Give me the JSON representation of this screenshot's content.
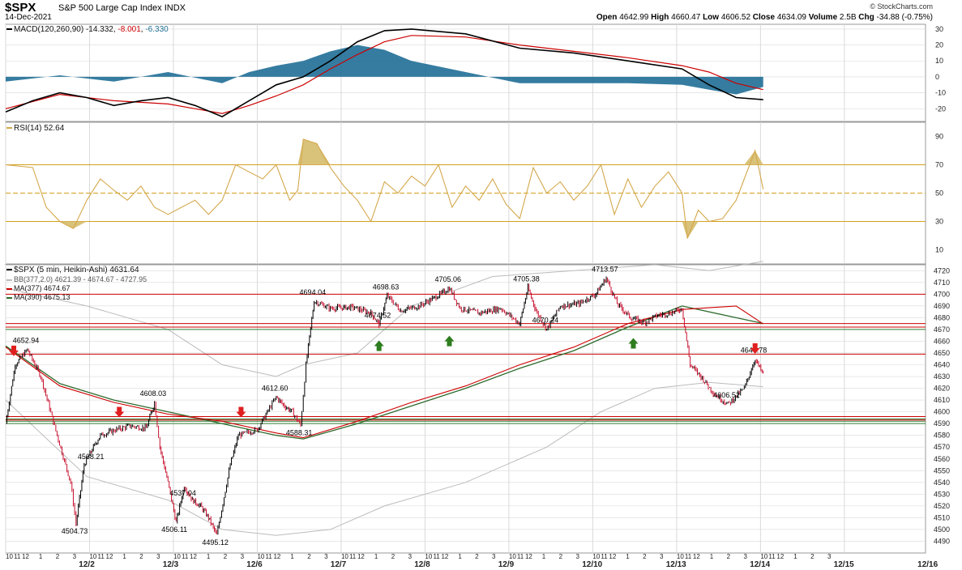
{
  "header": {
    "symbol": "$SPX",
    "name": "S&P 500 Large Cap Index",
    "exchange": "INDX",
    "date": "14-Dec-2021",
    "open_label": "Open",
    "open": "4642.99",
    "high_label": "High",
    "high": "4660.47",
    "low_label": "Low",
    "low": "4606.52",
    "close_label": "Close",
    "close": "4634.09",
    "volume_label": "Volume",
    "volume": "2.5B",
    "chg_label": "Chg",
    "chg": "-34.88 (-0.75%)",
    "credit": "© StockCharts.com"
  },
  "legends": {
    "macd": {
      "label": "MACD(120,260,90)",
      "v1": "-14.332",
      "v2": "-8.001",
      "v3": "-6.330"
    },
    "rsi": {
      "label": "RSI(14)",
      "value": "52.64"
    },
    "price": {
      "label": "$SPX (5 min, Heikin-Ashi)",
      "value": "4631.64"
    },
    "bb": {
      "label": "BB(377,2.0)",
      "value": "4621.39 - 4674.67 - 4727.95"
    },
    "ma377": {
      "label": "MA(377)",
      "value": "4674.67"
    },
    "ma390": {
      "label": "MA(390)",
      "value": "4675.13"
    }
  },
  "colors": {
    "grid": "#d9d9d9",
    "macd_line": "#000000",
    "signal_line": "#cc0000",
    "histogram": "#1f6e96",
    "rsi_line": "#d4a84b",
    "rsi_fill": "#d9c27a",
    "rsi_levels": "#d4a020",
    "candle_up": "#000000",
    "candle_down": "#c8102e",
    "resistance": "#cc0000",
    "support": "#2e7d32",
    "ma377": "#cc0000",
    "ma390": "#2e6b2e",
    "bb": "#bbbbbb",
    "arrow_down": "#e02020",
    "arrow_up": "#2e7d1e"
  },
  "chart_data": {
    "type": "candlestick",
    "series_note": "5-minute Heikin-Ashi bars, S&P 500",
    "x_axis": {
      "day_labels": [
        "12/2",
        "12/3",
        "12/6",
        "12/7",
        "12/8",
        "12/9",
        "12/10",
        "12/13",
        "12/14",
        "12/15",
        "12/16"
      ],
      "hour_labels": [
        [
          "10",
          "11"
        ],
        [
          "12",
          "1",
          "2",
          "3"
        ],
        [
          "10",
          "11"
        ],
        [
          "12",
          "1",
          "2",
          "3"
        ],
        [
          "10",
          "11"
        ],
        [
          "12",
          "1",
          "2",
          "3"
        ],
        [
          "10",
          "11"
        ],
        [
          "12",
          "1",
          "2",
          "3"
        ],
        [
          "10",
          "11"
        ],
        [
          "12",
          "1",
          "2",
          "3"
        ],
        [
          "10",
          "11"
        ],
        [
          "12",
          "1",
          "2",
          "3"
        ],
        [
          "10",
          "11"
        ],
        [
          "12",
          "1",
          "2",
          "3"
        ],
        [
          "10",
          "11"
        ],
        [
          "12",
          "1",
          "2",
          "3"
        ],
        [
          "10",
          "11"
        ],
        [
          "12",
          "1",
          "2",
          "3"
        ],
        [
          "10",
          "11"
        ],
        [
          "12",
          "1",
          "2",
          "3"
        ]
      ]
    },
    "price": {
      "ylim": [
        4480,
        4725
      ],
      "ticks": [
        4490,
        4500,
        4510,
        4520,
        4530,
        4540,
        4550,
        4560,
        4570,
        4580,
        4590,
        4600,
        4610,
        4620,
        4630,
        4640,
        4650,
        4660,
        4670,
        4680,
        4690,
        4700,
        4710,
        4720
      ],
      "path": [
        [
          0,
          4590
        ],
        [
          0.35,
          4640
        ],
        [
          0.8,
          4652.94
        ],
        [
          1.3,
          4630
        ],
        [
          1.9,
          4580
        ],
        [
          2.4,
          4540
        ],
        [
          2.6,
          4504.73
        ],
        [
          2.9,
          4555
        ],
        [
          3.2,
          4568.21
        ],
        [
          3.5,
          4580
        ],
        [
          4.1,
          4585
        ],
        [
          4.6,
          4588
        ],
        [
          5.2,
          4586
        ],
        [
          5.5,
          4608.03
        ],
        [
          5.7,
          4570
        ],
        [
          6.0,
          4540
        ],
        [
          6.3,
          4506.11
        ],
        [
          6.6,
          4537.04
        ],
        [
          6.9,
          4525
        ],
        [
          7.2,
          4520
        ],
        [
          7.5,
          4510
        ],
        [
          7.8,
          4495.12
        ],
        [
          8.3,
          4555
        ],
        [
          8.6,
          4580
        ],
        [
          9.3,
          4585
        ],
        [
          9.8,
          4605
        ],
        [
          10.0,
          4612.6
        ],
        [
          10.3,
          4605
        ],
        [
          10.6,
          4600
        ],
        [
          10.9,
          4588.31
        ],
        [
          11.1,
          4640
        ],
        [
          11.4,
          4694.04
        ],
        [
          12.0,
          4688
        ],
        [
          12.8,
          4689
        ],
        [
          13.5,
          4684
        ],
        [
          13.8,
          4674.52
        ],
        [
          14.1,
          4698.63
        ],
        [
          14.6,
          4686
        ],
        [
          15.3,
          4690
        ],
        [
          16.0,
          4699
        ],
        [
          16.4,
          4705.06
        ],
        [
          16.8,
          4688
        ],
        [
          17.5,
          4684
        ],
        [
          18.3,
          4688
        ],
        [
          19.0,
          4675
        ],
        [
          19.3,
          4705.38
        ],
        [
          19.6,
          4686
        ],
        [
          20.0,
          4670.24
        ],
        [
          20.5,
          4690
        ],
        [
          21.2,
          4692
        ],
        [
          21.8,
          4700
        ],
        [
          22.2,
          4713.57
        ],
        [
          22.6,
          4692
        ],
        [
          23.1,
          4680
        ],
        [
          23.6,
          4676
        ],
        [
          24.1,
          4682
        ],
        [
          24.6,
          4684
        ],
        [
          25.0,
          4688
        ],
        [
          25.3,
          4640
        ],
        [
          25.7,
          4630
        ],
        [
          26.2,
          4615
        ],
        [
          26.7,
          4606.52
        ],
        [
          27.3,
          4620
        ],
        [
          27.7,
          4644.78
        ],
        [
          28.0,
          4631.64
        ]
      ],
      "annotations": [
        {
          "label": "4652.94",
          "x": 0.8,
          "y": 4652.94
        },
        {
          "label": "4504.73",
          "x": 2.6,
          "y": 4504.73
        },
        {
          "label": "4568.21",
          "x": 3.2,
          "y": 4568.21
        },
        {
          "label": "4608.03",
          "x": 5.5,
          "y": 4608.03
        },
        {
          "label": "4506.11",
          "x": 6.3,
          "y": 4506.11
        },
        {
          "label": "4537.04",
          "x": 6.6,
          "y": 4537.04
        },
        {
          "label": "4495.12",
          "x": 7.8,
          "y": 4495.12
        },
        {
          "label": "4612.60",
          "x": 10.0,
          "y": 4612.6
        },
        {
          "label": "4588.31",
          "x": 10.9,
          "y": 4588.31
        },
        {
          "label": "4694.04",
          "x": 11.4,
          "y": 4694.04
        },
        {
          "label": "4674.52",
          "x": 13.8,
          "y": 4674.52
        },
        {
          "label": "4698.63",
          "x": 14.1,
          "y": 4698.63
        },
        {
          "label": "4705.06",
          "x": 16.4,
          "y": 4705.06
        },
        {
          "label": "4705.38",
          "x": 19.3,
          "y": 4705.38
        },
        {
          "label": "4670.24",
          "x": 20.0,
          "y": 4670.24
        },
        {
          "label": "4713.57",
          "x": 22.2,
          "y": 4713.57
        },
        {
          "label": "4606.52",
          "x": 26.7,
          "y": 4606.52
        },
        {
          "label": "4644.78",
          "x": 27.7,
          "y": 4644.78
        }
      ],
      "resistance_lines": [
        4700,
        4675,
        4672,
        4649,
        4596,
        4593
      ],
      "support_lines": [
        4670,
        4594,
        4592,
        4590
      ],
      "ma377": [
        [
          0,
          4655
        ],
        [
          2,
          4622
        ],
        [
          4,
          4608
        ],
        [
          6,
          4598
        ],
        [
          8,
          4592
        ],
        [
          10,
          4582
        ],
        [
          11,
          4578
        ],
        [
          13,
          4592
        ],
        [
          15,
          4608
        ],
        [
          17,
          4622
        ],
        [
          19,
          4640
        ],
        [
          21,
          4655
        ],
        [
          23,
          4675
        ],
        [
          25,
          4687
        ],
        [
          27,
          4690
        ],
        [
          28,
          4674.67
        ]
      ],
      "ma390": [
        [
          0,
          4656
        ],
        [
          2,
          4624
        ],
        [
          4,
          4610
        ],
        [
          6,
          4600
        ],
        [
          8,
          4590
        ],
        [
          10,
          4580
        ],
        [
          11,
          4577
        ],
        [
          13,
          4590
        ],
        [
          15,
          4605
        ],
        [
          17,
          4620
        ],
        [
          19,
          4637
        ],
        [
          21,
          4652
        ],
        [
          23,
          4672
        ],
        [
          25,
          4690
        ],
        [
          27,
          4680
        ],
        [
          28,
          4675.13
        ]
      ],
      "bb_upper": [
        [
          0,
          4705
        ],
        [
          3,
          4690
        ],
        [
          6,
          4670
        ],
        [
          8,
          4640
        ],
        [
          10,
          4630
        ],
        [
          11,
          4640
        ],
        [
          13,
          4650
        ],
        [
          15,
          4690
        ],
        [
          18,
          4715
        ],
        [
          21,
          4720
        ],
        [
          24,
          4725
        ],
        [
          26,
          4720
        ],
        [
          28,
          4727.95
        ]
      ],
      "bb_lower": [
        [
          0,
          4610
        ],
        [
          3,
          4545
        ],
        [
          6,
          4525
        ],
        [
          8,
          4500
        ],
        [
          10,
          4495
        ],
        [
          12,
          4500
        ],
        [
          14,
          4520
        ],
        [
          17,
          4540
        ],
        [
          20,
          4570
        ],
        [
          22,
          4600
        ],
        [
          24,
          4620
        ],
        [
          26,
          4625
        ],
        [
          28,
          4621.39
        ]
      ],
      "arrows_down": [
        [
          0.3,
          4648
        ],
        [
          4.2,
          4596
        ],
        [
          8.7,
          4596
        ],
        [
          27.7,
          4650
        ]
      ],
      "arrows_up": [
        [
          13.8,
          4660
        ],
        [
          16.4,
          4664
        ],
        [
          23.2,
          4662
        ]
      ]
    },
    "macd": {
      "ylim": [
        -28,
        33
      ],
      "ticks": [
        30,
        20,
        10,
        0,
        -10,
        -20
      ],
      "macd_line": [
        [
          0,
          -22
        ],
        [
          1,
          -15
        ],
        [
          2,
          -10
        ],
        [
          3,
          -13
        ],
        [
          4,
          -18
        ],
        [
          5,
          -15
        ],
        [
          6,
          -13
        ],
        [
          7,
          -18
        ],
        [
          8,
          -25
        ],
        [
          9,
          -15
        ],
        [
          10,
          -5
        ],
        [
          11,
          0
        ],
        [
          12,
          10
        ],
        [
          13,
          22
        ],
        [
          14,
          29
        ],
        [
          15,
          30
        ],
        [
          17,
          27
        ],
        [
          19,
          18
        ],
        [
          21,
          15
        ],
        [
          23,
          10
        ],
        [
          25,
          5
        ],
        [
          26,
          -5
        ],
        [
          27,
          -13
        ],
        [
          28,
          -14.332
        ]
      ],
      "signal_line": [
        [
          0,
          -20
        ],
        [
          2,
          -11
        ],
        [
          4,
          -15
        ],
        [
          6,
          -17
        ],
        [
          8,
          -23
        ],
        [
          9,
          -18
        ],
        [
          10,
          -12
        ],
        [
          11,
          -5
        ],
        [
          12,
          5
        ],
        [
          13,
          14
        ],
        [
          14,
          22
        ],
        [
          15,
          26
        ],
        [
          17,
          25
        ],
        [
          19,
          20
        ],
        [
          21,
          16
        ],
        [
          23,
          12
        ],
        [
          25,
          7
        ],
        [
          26,
          3
        ],
        [
          27,
          -4
        ],
        [
          28,
          -8.001
        ]
      ],
      "histogram": [
        [
          0,
          -3
        ],
        [
          2,
          1
        ],
        [
          4,
          -3
        ],
        [
          6,
          3
        ],
        [
          8,
          -4
        ],
        [
          9,
          3
        ],
        [
          10,
          7
        ],
        [
          11,
          10
        ],
        [
          12,
          16
        ],
        [
          13,
          20
        ],
        [
          14,
          17
        ],
        [
          15,
          10
        ],
        [
          17,
          3
        ],
        [
          19,
          -4
        ],
        [
          21,
          -4
        ],
        [
          23,
          -4
        ],
        [
          25,
          -5
        ],
        [
          26,
          -8
        ],
        [
          27,
          -11
        ],
        [
          28,
          -6.33
        ]
      ]
    },
    "rsi": {
      "ylim": [
        0,
        100
      ],
      "ticks": [
        90,
        70,
        50,
        30,
        10
      ],
      "levels": [
        70,
        50,
        30
      ],
      "path": [
        [
          0,
          70
        ],
        [
          1,
          68
        ],
        [
          1.5,
          40
        ],
        [
          2,
          30
        ],
        [
          2.5,
          25
        ],
        [
          3,
          45
        ],
        [
          3.5,
          60
        ],
        [
          4,
          52
        ],
        [
          4.5,
          45
        ],
        [
          5,
          55
        ],
        [
          5.5,
          40
        ],
        [
          6,
          35
        ],
        [
          6.5,
          40
        ],
        [
          7,
          45
        ],
        [
          7.5,
          35
        ],
        [
          8,
          45
        ],
        [
          8.5,
          70
        ],
        [
          9,
          65
        ],
        [
          9.5,
          60
        ],
        [
          10,
          70
        ],
        [
          10.5,
          45
        ],
        [
          10.8,
          52
        ],
        [
          11.0,
          88
        ],
        [
          11.5,
          85
        ],
        [
          12,
          68
        ],
        [
          12.5,
          55
        ],
        [
          13,
          45
        ],
        [
          13.5,
          30
        ],
        [
          14,
          58
        ],
        [
          14.5,
          50
        ],
        [
          15,
          62
        ],
        [
          15.5,
          55
        ],
        [
          16,
          70
        ],
        [
          16.5,
          40
        ],
        [
          17,
          55
        ],
        [
          17.5,
          45
        ],
        [
          18,
          60
        ],
        [
          18.5,
          42
        ],
        [
          19,
          32
        ],
        [
          19.5,
          68
        ],
        [
          20,
          50
        ],
        [
          20.5,
          58
        ],
        [
          21,
          45
        ],
        [
          21.5,
          55
        ],
        [
          22,
          70
        ],
        [
          22.5,
          35
        ],
        [
          23,
          60
        ],
        [
          23.5,
          40
        ],
        [
          24,
          55
        ],
        [
          24.5,
          65
        ],
        [
          25,
          50
        ],
        [
          25.2,
          18
        ],
        [
          25.6,
          38
        ],
        [
          26,
          30
        ],
        [
          26.5,
          32
        ],
        [
          27,
          45
        ],
        [
          27.3,
          60
        ],
        [
          27.7,
          80
        ],
        [
          28,
          52.64
        ]
      ]
    },
    "days_visible": 8,
    "bars_per_day": 78
  }
}
